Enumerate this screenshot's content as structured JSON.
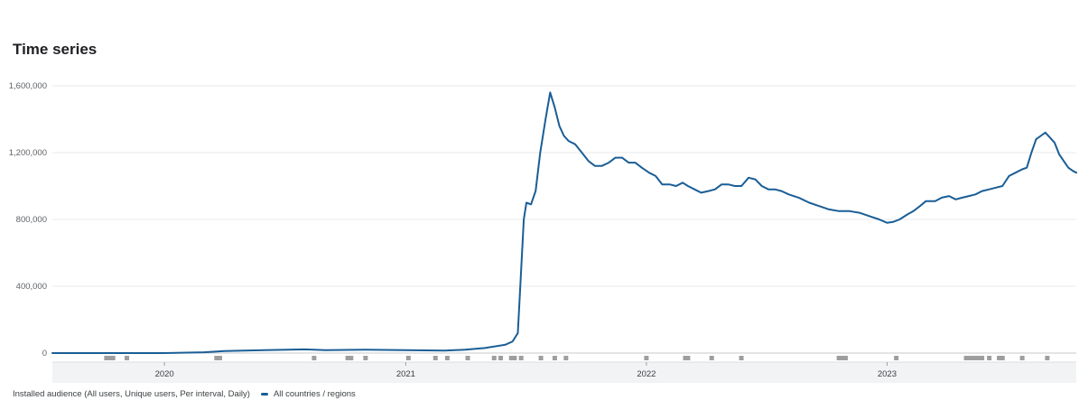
{
  "page": {
    "title": "Time series"
  },
  "legend": {
    "description": "Installed audience (All users, Unique users, Per interval, Daily)",
    "series_label": "All countries / regions"
  },
  "colors": {
    "series": "#1a5e96",
    "grid": "#e8eaed",
    "marker": "#9e9e9e"
  },
  "chart_data": {
    "type": "line",
    "title": "Time series",
    "xlabel": "",
    "ylabel": "",
    "x_ticks": [
      "2020",
      "2021",
      "2022",
      "2023"
    ],
    "y_ticks": [
      "0",
      "400,000",
      "800,000",
      "1,200,000",
      "1,600,000"
    ],
    "ylim": [
      0,
      1600000
    ],
    "xlim": [
      "2019-07-15",
      "2023-10-15"
    ],
    "grid": true,
    "legend_position": "bottom-left",
    "series": [
      {
        "name": "All countries / regions",
        "x": [
          "2019-07-15",
          "2019-09-01",
          "2019-11-01",
          "2020-01-01",
          "2020-03-01",
          "2020-04-01",
          "2020-05-01",
          "2020-06-01",
          "2020-08-01",
          "2020-09-01",
          "2020-11-01",
          "2021-01-01",
          "2021-03-01",
          "2021-04-01",
          "2021-05-01",
          "2021-06-01",
          "2021-06-12",
          "2021-06-20",
          "2021-06-25",
          "2021-06-29",
          "2021-07-03",
          "2021-07-10",
          "2021-07-17",
          "2021-07-24",
          "2021-08-01",
          "2021-08-08",
          "2021-08-15",
          "2021-08-22",
          "2021-08-29",
          "2021-09-05",
          "2021-09-15",
          "2021-09-25",
          "2021-10-05",
          "2021-10-15",
          "2021-10-25",
          "2021-11-05",
          "2021-11-15",
          "2021-11-25",
          "2021-12-05",
          "2021-12-15",
          "2021-12-25",
          "2022-01-05",
          "2022-01-15",
          "2022-01-25",
          "2022-02-05",
          "2022-02-15",
          "2022-02-25",
          "2022-03-05",
          "2022-03-15",
          "2022-03-25",
          "2022-04-05",
          "2022-04-15",
          "2022-04-25",
          "2022-05-05",
          "2022-05-15",
          "2022-05-25",
          "2022-06-05",
          "2022-06-15",
          "2022-06-25",
          "2022-07-05",
          "2022-07-15",
          "2022-07-25",
          "2022-08-05",
          "2022-08-20",
          "2022-09-05",
          "2022-09-20",
          "2022-10-05",
          "2022-10-20",
          "2022-11-05",
          "2022-11-20",
          "2022-12-05",
          "2022-12-20",
          "2023-01-01",
          "2023-01-10",
          "2023-01-20",
          "2023-02-01",
          "2023-02-10",
          "2023-02-20",
          "2023-03-01",
          "2023-03-15",
          "2023-03-25",
          "2023-04-05",
          "2023-04-15",
          "2023-04-25",
          "2023-05-05",
          "2023-05-15",
          "2023-05-25",
          "2023-06-05",
          "2023-06-15",
          "2023-06-25",
          "2023-07-05",
          "2023-07-15",
          "2023-07-25",
          "2023-08-01",
          "2023-08-08",
          "2023-08-15",
          "2023-08-22",
          "2023-08-29",
          "2023-09-05",
          "2023-09-12",
          "2023-09-19",
          "2023-09-26",
          "2023-10-03",
          "2023-10-10",
          "2023-10-15"
        ],
        "y": [
          0,
          0,
          0,
          0,
          5000,
          12000,
          15000,
          18000,
          22000,
          18000,
          20000,
          18000,
          15000,
          20000,
          30000,
          50000,
          70000,
          120000,
          500000,
          800000,
          900000,
          890000,
          970000,
          1200000,
          1400000,
          1560000,
          1470000,
          1360000,
          1300000,
          1270000,
          1250000,
          1200000,
          1150000,
          1120000,
          1120000,
          1140000,
          1170000,
          1170000,
          1140000,
          1140000,
          1110000,
          1080000,
          1060000,
          1010000,
          1010000,
          1000000,
          1020000,
          1000000,
          980000,
          960000,
          970000,
          980000,
          1010000,
          1010000,
          1000000,
          1000000,
          1050000,
          1040000,
          1000000,
          980000,
          980000,
          970000,
          950000,
          930000,
          900000,
          880000,
          860000,
          850000,
          850000,
          840000,
          820000,
          800000,
          780000,
          785000,
          800000,
          830000,
          850000,
          880000,
          910000,
          910000,
          930000,
          940000,
          920000,
          930000,
          940000,
          950000,
          970000,
          980000,
          990000,
          1000000,
          1060000,
          1080000,
          1100000,
          1110000,
          1200000,
          1280000,
          1300000,
          1320000,
          1290000,
          1260000,
          1190000,
          1150000,
          1110000,
          1090000,
          1080000
        ]
      }
    ],
    "event_markers": [
      "2019-10-05",
      "2019-10-10",
      "2019-10-15",
      "2019-11-05",
      "2020-03-20",
      "2020-03-25",
      "2020-08-15",
      "2020-10-05",
      "2020-10-10",
      "2020-11-01",
      "2021-01-05",
      "2021-02-15",
      "2021-03-05",
      "2021-04-05",
      "2021-05-15",
      "2021-05-25",
      "2021-06-10",
      "2021-06-15",
      "2021-06-25",
      "2021-07-25",
      "2021-08-15",
      "2021-09-01",
      "2022-01-01",
      "2022-03-01",
      "2022-03-05",
      "2022-04-10",
      "2022-05-25",
      "2022-10-20",
      "2022-10-25",
      "2022-10-30",
      "2023-01-15",
      "2023-05-01",
      "2023-05-05",
      "2023-05-10",
      "2023-05-15",
      "2023-05-20",
      "2023-05-25",
      "2023-06-05",
      "2023-06-20",
      "2023-06-25",
      "2023-07-25",
      "2023-09-01"
    ]
  }
}
